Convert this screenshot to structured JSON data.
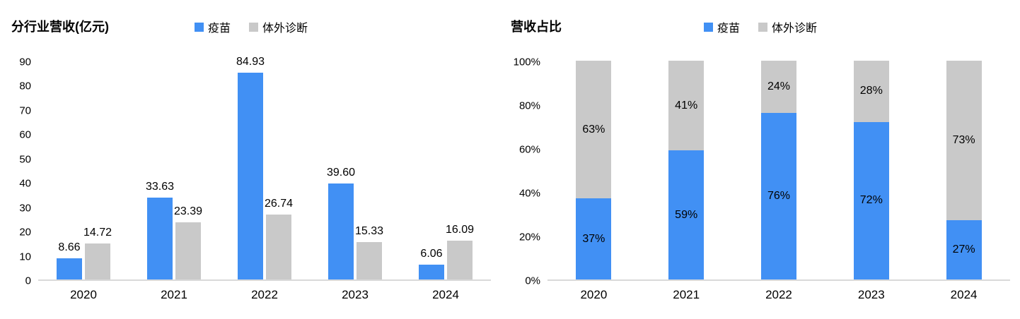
{
  "chart_data": [
    {
      "type": "bar",
      "variant": "grouped",
      "title": "分行业营收(亿元)",
      "categories": [
        "2020",
        "2021",
        "2022",
        "2023",
        "2024"
      ],
      "series": [
        {
          "name": "疫苗",
          "key": "vaccine",
          "color": "#4190F4",
          "values": [
            8.66,
            33.63,
            84.93,
            39.6,
            6.06
          ],
          "labels": [
            "8.66",
            "33.63",
            "84.93",
            "39.60",
            "6.06"
          ]
        },
        {
          "name": "体外诊断",
          "key": "ivd",
          "color": "#C9C9C9",
          "values": [
            14.72,
            23.39,
            26.74,
            15.33,
            16.09
          ],
          "labels": [
            "14.72",
            "23.39",
            "26.74",
            "15.33",
            "16.09"
          ]
        }
      ],
      "ylim": [
        0,
        90
      ],
      "ytick_labels": [
        "0",
        "10",
        "20",
        "30",
        "40",
        "50",
        "60",
        "70",
        "80",
        "90"
      ],
      "grid": false,
      "legend_position": "top"
    },
    {
      "type": "bar",
      "variant": "stacked-100",
      "stacked": true,
      "title": "营收占比",
      "categories": [
        "2020",
        "2021",
        "2022",
        "2023",
        "2024"
      ],
      "series": [
        {
          "name": "疫苗",
          "key": "vaccine",
          "color": "#4190F4",
          "values": [
            37,
            59,
            76,
            72,
            27
          ],
          "labels": [
            "37%",
            "59%",
            "76%",
            "72%",
            "27%"
          ]
        },
        {
          "name": "体外诊断",
          "key": "ivd",
          "color": "#C9C9C9",
          "values": [
            63,
            41,
            24,
            28,
            73
          ],
          "labels": [
            "63%",
            "41%",
            "24%",
            "28%",
            "73%"
          ]
        }
      ],
      "ylim": [
        0,
        100
      ],
      "ytick_labels": [
        "0%",
        "20%",
        "40%",
        "60%",
        "80%",
        "100%"
      ],
      "grid": false,
      "legend_position": "top"
    }
  ],
  "colors": {
    "axis_line": "#D9D9D9",
    "text": "#000000"
  }
}
